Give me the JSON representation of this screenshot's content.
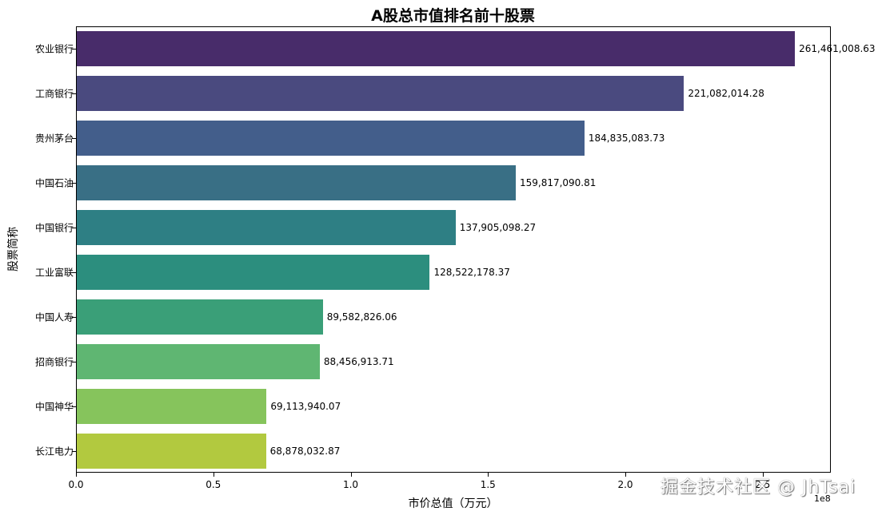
{
  "chart_data": {
    "type": "bar",
    "orientation": "horizontal",
    "title": "A股总市值排名前十股票",
    "xlabel": "市价总值（万元）",
    "ylabel": "股票简称",
    "x_offset_label": "1e8",
    "xlim": [
      0,
      275000000.0
    ],
    "xticks": [
      "0.0",
      "0.5",
      "1.0",
      "1.5",
      "2.0",
      "2.5"
    ],
    "categories": [
      "农业银行",
      "工商银行",
      "贵州茅台",
      "中国石油",
      "中国银行",
      "工业富联",
      "中国人寿",
      "招商银行",
      "中国神华",
      "长江电力"
    ],
    "values": [
      261461008.63,
      221082014.28,
      184835083.73,
      159817090.81,
      137905098.27,
      128522178.37,
      89582826.06,
      88456913.71,
      69113940.07,
      68878032.87
    ],
    "value_labels": [
      "261,461,008.63",
      "221,082,014.28",
      "184,835,083.73",
      "159,817,090.81",
      "137,905,098.27",
      "128,522,178.37",
      "89,582,826.06",
      "88,456,913.71",
      "69,113,940.07",
      "68,878,032.87"
    ],
    "colors": [
      "#482c6a",
      "#4a4a7f",
      "#435e8b",
      "#396f85",
      "#2e7f84",
      "#2c8e7e",
      "#3a9f78",
      "#5fb672",
      "#86c45c",
      "#b2c93f"
    ],
    "palette": "viridis",
    "grid": false,
    "legend": null
  },
  "watermark": "掘金技术社区 @ JhTsai"
}
